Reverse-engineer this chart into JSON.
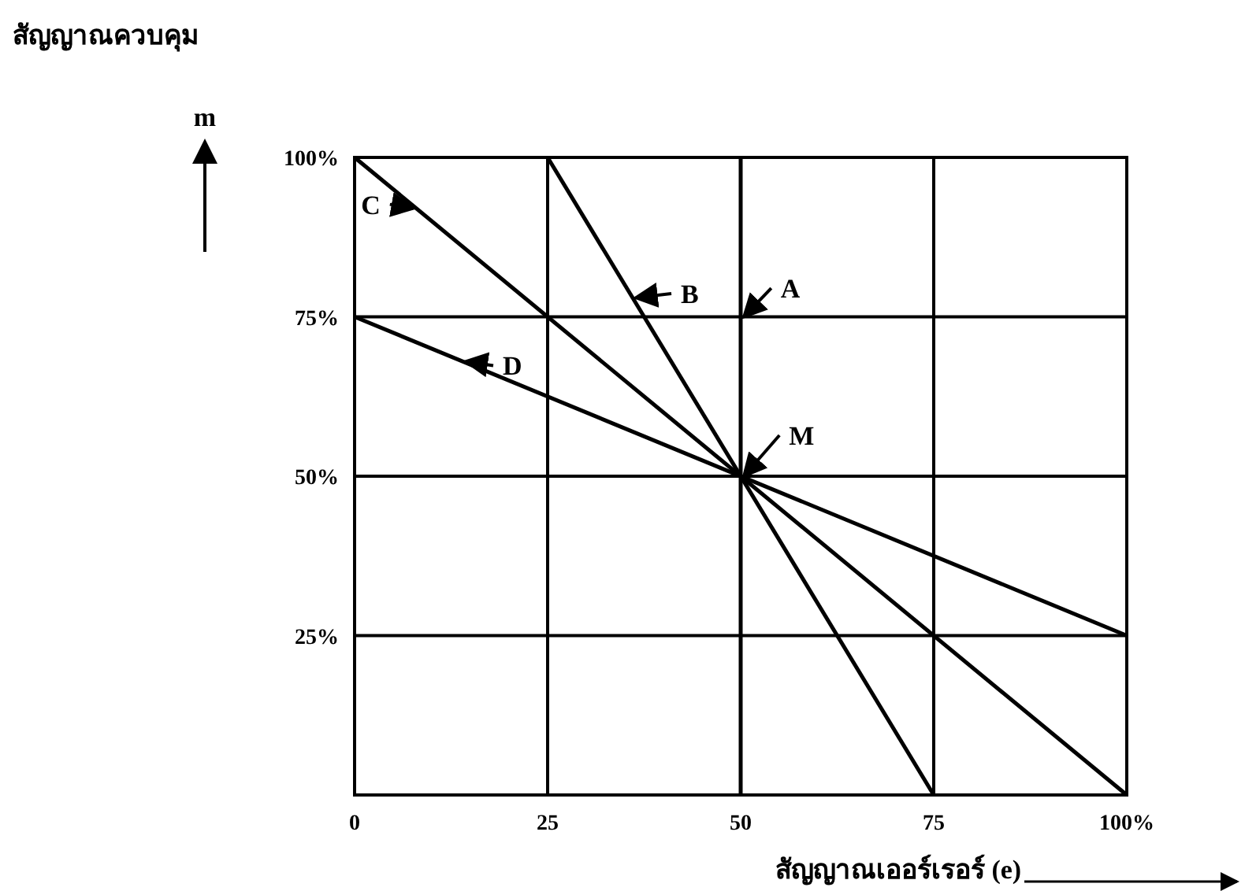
{
  "chart_data": {
    "type": "line",
    "xlabel": "สัญญาณเออร์เรอร์ (e)",
    "ylabel": "สัญญาณควบคุม",
    "xlim": [
      0,
      100
    ],
    "ylim": [
      0,
      100
    ],
    "xticks": [
      {
        "value": 0,
        "label": "0"
      },
      25,
      50,
      75,
      {
        "value": 100,
        "label": "100%"
      }
    ],
    "yticks": [
      {
        "value": 25,
        "label": "25%"
      },
      {
        "value": 50,
        "label": "50%"
      },
      {
        "value": 75,
        "label": "75%"
      },
      {
        "value": 100,
        "label": "100%"
      }
    ],
    "grid": true,
    "line_style": "solid",
    "series": [
      {
        "color": "#000000",
        "x": [
          50,
          50
        ],
        "values": [
          0,
          100
        ]
      },
      {
        "color": "#000000",
        "x": [
          25,
          75
        ],
        "values": [
          100,
          0
        ]
      },
      {
        "color": "#000000",
        "x": [
          0,
          100
        ],
        "values": [
          100,
          0
        ]
      },
      {
        "color": "#000000",
        "x": [
          0,
          100
        ],
        "values": [
          75,
          25
        ]
      }
    ],
    "annotations": [
      "m",
      {
        "text": "A",
        "x": 50,
        "y": 75
      },
      {
        "text": "B",
        "x": 36,
        "y": 78
      },
      {
        "text": "C",
        "x": 8,
        "y": 92
      },
      {
        "text": "D",
        "x": 14,
        "y": 68
      },
      {
        "text": "M",
        "x": 50,
        "y": 50
      }
    ]
  }
}
